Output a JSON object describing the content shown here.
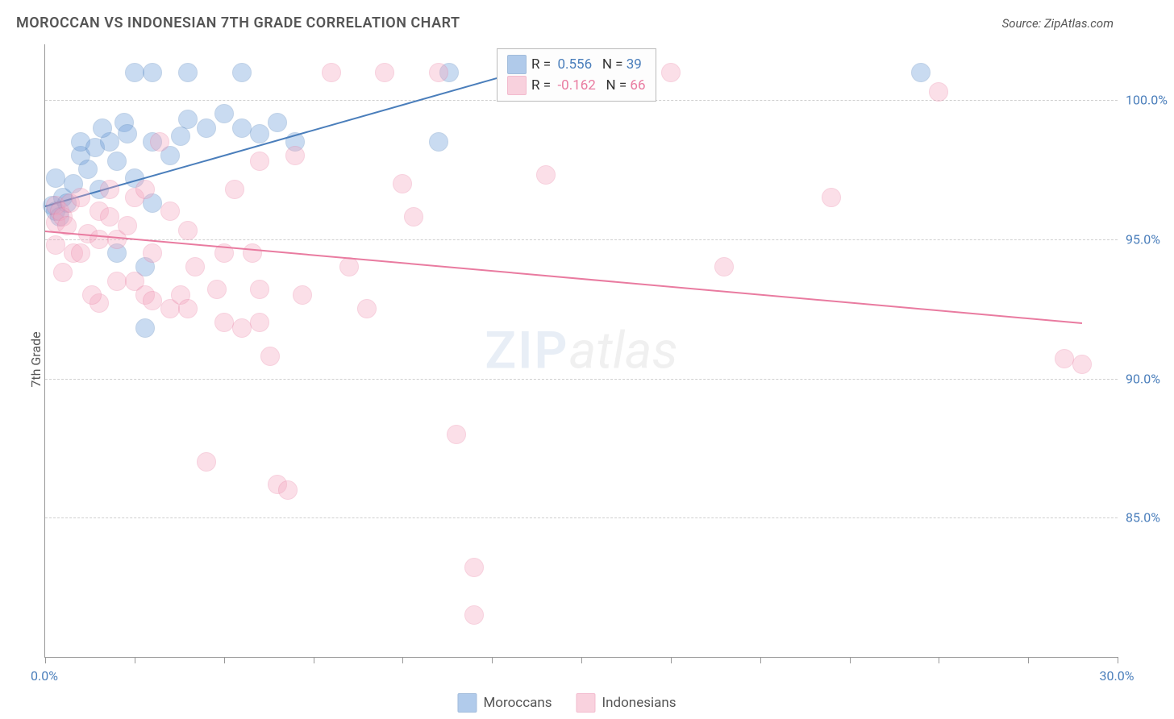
{
  "title": "MOROCCAN VS INDONESIAN 7TH GRADE CORRELATION CHART",
  "source": "Source: ZipAtlas.com",
  "ylabel": "7th Grade",
  "watermark": {
    "part1": "ZIP",
    "part2": "atlas"
  },
  "chart": {
    "type": "scatter",
    "xlim": [
      0,
      30
    ],
    "ylim": [
      80,
      102
    ],
    "y_gridlines": [
      85,
      90,
      95,
      100
    ],
    "y_tick_labels": [
      "85.0%",
      "90.0%",
      "95.0%",
      "100.0%"
    ],
    "x_ticks": [
      0,
      2.5,
      5,
      7.5,
      10,
      12.5,
      15,
      17.5,
      20,
      22.5,
      25,
      27.5,
      30
    ],
    "x_tick_labels": {
      "0": "0.0%",
      "30": "30.0%"
    },
    "background_color": "#ffffff",
    "grid_color": "#d0d0d0",
    "axis_color": "#999999",
    "label_color": "#4a7ebb",
    "marker_radius": 11,
    "marker_opacity": 0.35,
    "series": [
      {
        "name": "Moroccans",
        "color": "#6699d8",
        "border": "#4a7ebb",
        "R": "0.556",
        "N": "39",
        "trend": {
          "x1": 0,
          "y1": 96.2,
          "x2": 14,
          "y2": 101.3
        },
        "points": [
          [
            0.2,
            96.2
          ],
          [
            0.3,
            96.0
          ],
          [
            0.5,
            96.5
          ],
          [
            0.4,
            95.8
          ],
          [
            0.6,
            96.3
          ],
          [
            0.3,
            97.2
          ],
          [
            0.8,
            97.0
          ],
          [
            1.0,
            98.0
          ],
          [
            1.2,
            97.5
          ],
          [
            1.0,
            98.5
          ],
          [
            1.5,
            96.8
          ],
          [
            1.4,
            98.3
          ],
          [
            1.8,
            98.5
          ],
          [
            1.6,
            99.0
          ],
          [
            2.0,
            97.8
          ],
          [
            2.0,
            94.5
          ],
          [
            2.2,
            99.2
          ],
          [
            2.5,
            97.2
          ],
          [
            2.3,
            98.8
          ],
          [
            2.8,
            94.0
          ],
          [
            2.5,
            101.0
          ],
          [
            3.0,
            96.3
          ],
          [
            3.0,
            98.5
          ],
          [
            3.0,
            101.0
          ],
          [
            3.5,
            98.0
          ],
          [
            3.8,
            98.7
          ],
          [
            4.0,
            99.3
          ],
          [
            4.0,
            101.0
          ],
          [
            4.5,
            99.0
          ],
          [
            5.0,
            99.5
          ],
          [
            5.5,
            99.0
          ],
          [
            5.5,
            101.0
          ],
          [
            6.0,
            98.8
          ],
          [
            6.5,
            99.2
          ],
          [
            7.0,
            98.5
          ],
          [
            2.8,
            91.8
          ],
          [
            11.0,
            98.5
          ],
          [
            11.3,
            101.0
          ],
          [
            24.5,
            101.0
          ]
        ]
      },
      {
        "name": "Indonesians",
        "color": "#f4a6bf",
        "border": "#e97ba0",
        "R": "-0.162",
        "N": "66",
        "trend": {
          "x1": 0,
          "y1": 95.3,
          "x2": 29,
          "y2": 92.0
        },
        "points": [
          [
            0.3,
            96.2
          ],
          [
            0.3,
            95.6
          ],
          [
            0.4,
            96.0
          ],
          [
            0.5,
            95.8
          ],
          [
            0.6,
            95.5
          ],
          [
            0.7,
            96.3
          ],
          [
            0.3,
            94.8
          ],
          [
            0.8,
            94.5
          ],
          [
            0.5,
            93.8
          ],
          [
            1.0,
            96.5
          ],
          [
            1.0,
            94.5
          ],
          [
            1.2,
            95.2
          ],
          [
            1.5,
            96.0
          ],
          [
            1.5,
            95.0
          ],
          [
            1.5,
            92.7
          ],
          [
            1.8,
            95.8
          ],
          [
            1.8,
            96.8
          ],
          [
            1.3,
            93.0
          ],
          [
            2.0,
            93.5
          ],
          [
            2.0,
            95.0
          ],
          [
            2.3,
            95.5
          ],
          [
            2.5,
            96.5
          ],
          [
            2.5,
            93.5
          ],
          [
            2.8,
            93.0
          ],
          [
            2.8,
            96.8
          ],
          [
            3.0,
            94.5
          ],
          [
            3.0,
            92.8
          ],
          [
            3.2,
            98.5
          ],
          [
            3.5,
            96.0
          ],
          [
            3.5,
            92.5
          ],
          [
            3.8,
            93.0
          ],
          [
            4.0,
            95.3
          ],
          [
            4.0,
            92.5
          ],
          [
            4.2,
            94.0
          ],
          [
            4.5,
            87.0
          ],
          [
            4.8,
            93.2
          ],
          [
            5.0,
            94.5
          ],
          [
            5.0,
            92.0
          ],
          [
            5.3,
            96.8
          ],
          [
            5.5,
            91.8
          ],
          [
            5.8,
            94.5
          ],
          [
            6.0,
            93.2
          ],
          [
            6.0,
            97.8
          ],
          [
            6.0,
            92.0
          ],
          [
            6.3,
            90.8
          ],
          [
            6.5,
            86.2
          ],
          [
            6.8,
            86.0
          ],
          [
            7.0,
            98.0
          ],
          [
            7.2,
            93.0
          ],
          [
            8.0,
            101.0
          ],
          [
            8.5,
            94.0
          ],
          [
            9.0,
            92.5
          ],
          [
            9.5,
            101.0
          ],
          [
            10.0,
            97.0
          ],
          [
            10.3,
            95.8
          ],
          [
            11.0,
            101.0
          ],
          [
            11.5,
            88.0
          ],
          [
            12.0,
            83.2
          ],
          [
            12.0,
            81.5
          ],
          [
            14.0,
            97.3
          ],
          [
            17.5,
            101.0
          ],
          [
            19.0,
            94.0
          ],
          [
            22.0,
            96.5
          ],
          [
            28.5,
            90.7
          ],
          [
            29.0,
            90.5
          ],
          [
            25.0,
            100.3
          ]
        ]
      }
    ]
  },
  "stats_legend": {
    "r_prefix": "R =",
    "n_prefix": "N ="
  },
  "bottom_legend": {
    "items": [
      "Moroccans",
      "Indonesians"
    ]
  }
}
